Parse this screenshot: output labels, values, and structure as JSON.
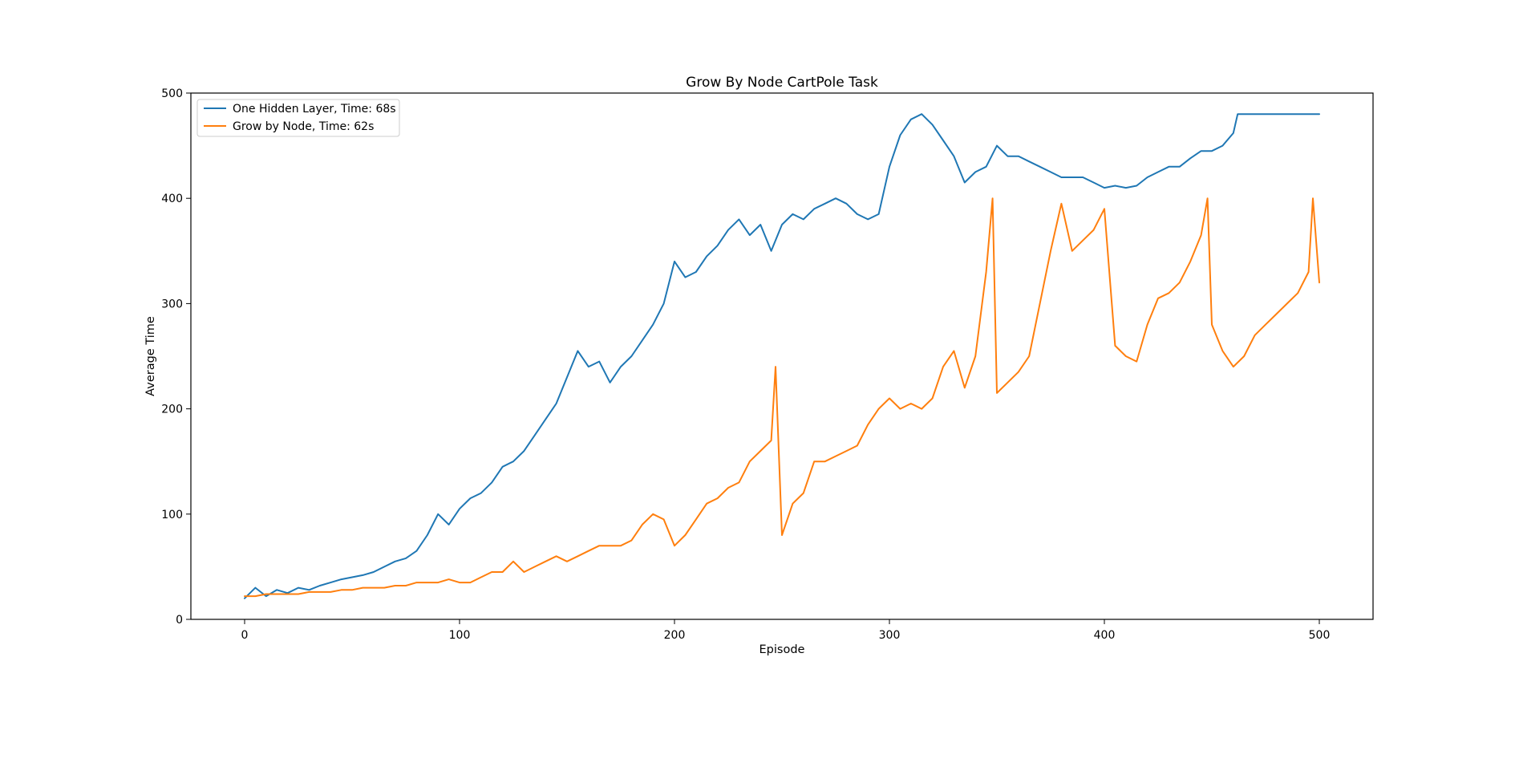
{
  "chart_data": {
    "type": "line",
    "title": "Grow By Node CartPole Task",
    "xlabel": "Episode",
    "ylabel": "Average Time",
    "xlim": [
      -25,
      525
    ],
    "ylim": [
      0,
      500
    ],
    "xticks": [
      0,
      100,
      200,
      300,
      400,
      500
    ],
    "yticks": [
      0,
      100,
      200,
      300,
      400,
      500
    ],
    "grid": false,
    "legend_position": "top-left",
    "colors": [
      "#1f77b4",
      "#ff7f0e"
    ],
    "series": [
      {
        "name": "One Hidden Layer, Time: 68s",
        "x": [
          0,
          5,
          10,
          15,
          20,
          25,
          30,
          35,
          40,
          45,
          50,
          55,
          60,
          65,
          70,
          75,
          80,
          85,
          90,
          95,
          100,
          105,
          110,
          115,
          120,
          125,
          130,
          135,
          140,
          145,
          150,
          155,
          160,
          165,
          170,
          175,
          180,
          185,
          190,
          195,
          200,
          205,
          210,
          215,
          220,
          225,
          230,
          235,
          240,
          245,
          250,
          255,
          260,
          265,
          270,
          275,
          280,
          285,
          290,
          295,
          300,
          305,
          310,
          315,
          320,
          325,
          330,
          335,
          340,
          345,
          350,
          355,
          360,
          365,
          370,
          375,
          380,
          385,
          390,
          395,
          400,
          405,
          410,
          415,
          420,
          425,
          430,
          435,
          440,
          445,
          450,
          455,
          460,
          462,
          465,
          470,
          475,
          480,
          485,
          490,
          495,
          500
        ],
        "y": [
          20,
          30,
          22,
          28,
          25,
          30,
          28,
          32,
          35,
          38,
          40,
          42,
          45,
          50,
          55,
          58,
          65,
          80,
          100,
          90,
          105,
          115,
          120,
          130,
          145,
          150,
          160,
          175,
          190,
          205,
          230,
          255,
          240,
          245,
          225,
          240,
          250,
          265,
          280,
          300,
          340,
          325,
          330,
          345,
          355,
          370,
          380,
          365,
          375,
          350,
          375,
          385,
          380,
          390,
          395,
          400,
          395,
          385,
          380,
          385,
          430,
          460,
          475,
          480,
          470,
          455,
          440,
          415,
          425,
          430,
          450,
          440,
          440,
          435,
          430,
          425,
          420,
          420,
          420,
          415,
          410,
          412,
          410,
          412,
          420,
          425,
          430,
          430,
          438,
          445,
          445,
          450,
          462,
          480,
          480,
          480,
          480,
          480,
          480,
          480,
          480,
          480
        ]
      },
      {
        "name": "Grow by Node, Time: 62s",
        "x": [
          0,
          5,
          10,
          15,
          20,
          25,
          30,
          35,
          40,
          45,
          50,
          55,
          60,
          65,
          70,
          75,
          80,
          85,
          90,
          95,
          100,
          105,
          110,
          115,
          120,
          125,
          130,
          135,
          140,
          145,
          150,
          155,
          160,
          165,
          170,
          175,
          180,
          185,
          190,
          195,
          200,
          205,
          210,
          215,
          220,
          225,
          230,
          235,
          240,
          245,
          247,
          250,
          255,
          260,
          265,
          270,
          275,
          280,
          285,
          290,
          295,
          300,
          305,
          310,
          315,
          320,
          325,
          330,
          335,
          340,
          345,
          348,
          350,
          355,
          360,
          365,
          370,
          375,
          380,
          385,
          390,
          395,
          400,
          405,
          410,
          415,
          420,
          425,
          430,
          435,
          440,
          445,
          448,
          450,
          455,
          460,
          465,
          470,
          475,
          480,
          485,
          490,
          495,
          497,
          500
        ],
        "y": [
          22,
          22,
          24,
          24,
          24,
          24,
          26,
          26,
          26,
          28,
          28,
          30,
          30,
          30,
          32,
          32,
          35,
          35,
          35,
          38,
          35,
          35,
          40,
          45,
          45,
          55,
          45,
          50,
          55,
          60,
          55,
          60,
          65,
          70,
          70,
          70,
          75,
          90,
          100,
          95,
          70,
          80,
          95,
          110,
          115,
          125,
          130,
          150,
          160,
          170,
          240,
          80,
          110,
          120,
          150,
          150,
          155,
          160,
          165,
          185,
          200,
          210,
          200,
          205,
          200,
          210,
          240,
          255,
          220,
          250,
          330,
          400,
          215,
          225,
          235,
          250,
          300,
          350,
          395,
          350,
          360,
          370,
          390,
          260,
          250,
          245,
          280,
          305,
          310,
          320,
          340,
          365,
          400,
          280,
          255,
          240,
          250,
          270,
          280,
          290,
          300,
          310,
          330,
          400,
          320
        ]
      }
    ]
  }
}
